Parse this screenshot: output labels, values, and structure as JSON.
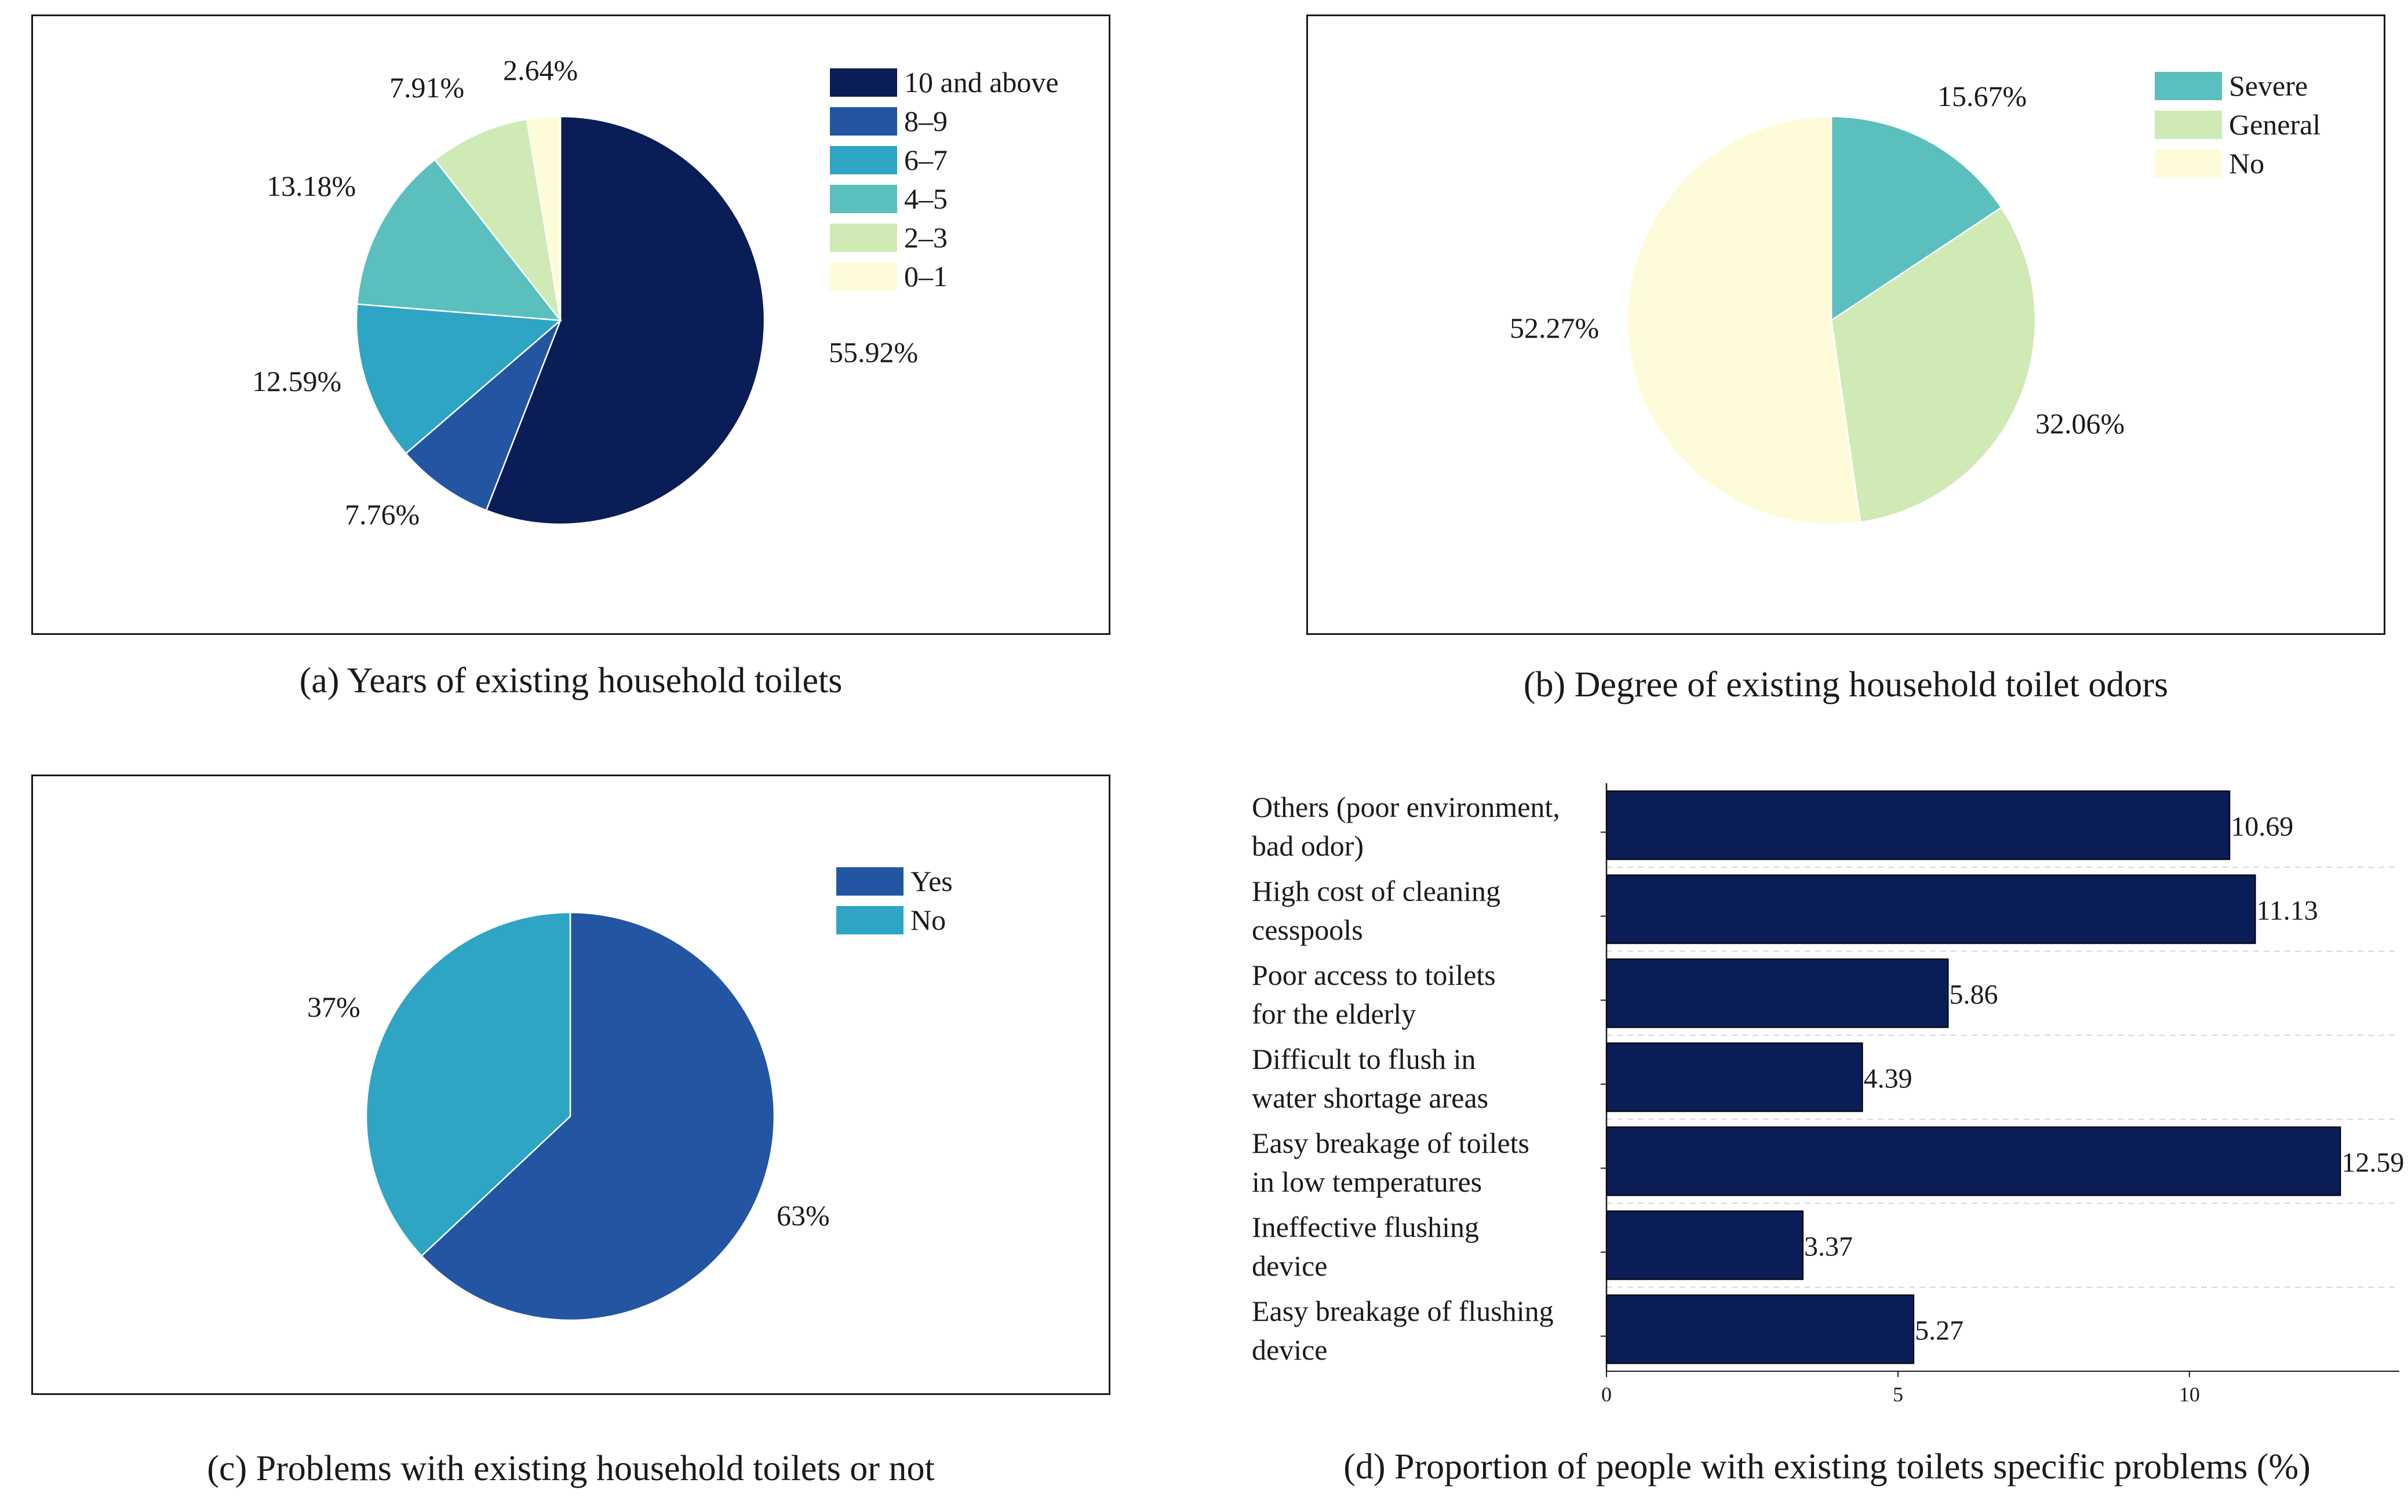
{
  "chart_data": [
    {
      "id": "a",
      "type": "pie",
      "caption": "(a) Years of existing household toilets",
      "legend_position": "top-right",
      "slices": [
        {
          "label": "10 and above",
          "value": 55.92,
          "value_label": "55.92%",
          "color": "#0b1d57"
        },
        {
          "label": "8–9",
          "value": 7.76,
          "value_label": "7.76%",
          "color": "#2355a3"
        },
        {
          "label": "6–7",
          "value": 12.59,
          "value_label": "12.59%",
          "color": "#2ea5c4"
        },
        {
          "label": "4–5",
          "value": 13.18,
          "value_label": "13.18%",
          "color": "#5bbfbd"
        },
        {
          "label": "2–3",
          "value": 7.91,
          "value_label": "7.91%",
          "color": "#cfeab5"
        },
        {
          "label": "0–1",
          "value": 2.64,
          "value_label": "2.64%",
          "color": "#fefbd8"
        }
      ]
    },
    {
      "id": "b",
      "type": "pie",
      "caption": "(b) Degree of existing household toilet odors",
      "legend_position": "top-right",
      "slices": [
        {
          "label": "Severe",
          "value": 15.67,
          "value_label": "15.67%",
          "color": "#5bbfbd"
        },
        {
          "label": "General",
          "value": 32.06,
          "value_label": "32.06%",
          "color": "#cfeab5"
        },
        {
          "label": "No",
          "value": 52.27,
          "value_label": "52.27%",
          "color": "#fefbd8"
        }
      ]
    },
    {
      "id": "c",
      "type": "pie",
      "caption": "(c) Problems with existing household toilets or not",
      "legend_position": "top-right",
      "slices": [
        {
          "label": "Yes",
          "value": 63,
          "value_label": "63%",
          "color": "#2355a3"
        },
        {
          "label": "No",
          "value": 37,
          "value_label": "37%",
          "color": "#2ea5c4"
        }
      ]
    },
    {
      "id": "d",
      "type": "bar",
      "orientation": "horizontal",
      "caption": "(d) Proportion of people with existing toilets specific problems (%)",
      "bar_color": "#0b1d57",
      "xlim": [
        0,
        13.6
      ],
      "xticks": [
        0,
        5,
        10
      ],
      "categories": [
        [
          "Others (poor environment,",
          "bad odor)"
        ],
        [
          "High cost of cleaning",
          "cesspools"
        ],
        [
          "Poor access to toilets",
          "for the elderly"
        ],
        [
          "Difficult to flush in",
          "water shortage areas"
        ],
        [
          "Easy breakage of toilets",
          "in low temperatures"
        ],
        [
          "Ineffective flushing",
          "device"
        ],
        [
          "Easy breakage of flushing",
          "device"
        ]
      ],
      "values": [
        10.69,
        11.13,
        5.86,
        4.39,
        12.59,
        3.37,
        5.27
      ],
      "value_labels": [
        "10.69",
        "11.13",
        "5.86",
        "4.39",
        "12.59",
        "3.37",
        "5.27"
      ]
    }
  ]
}
